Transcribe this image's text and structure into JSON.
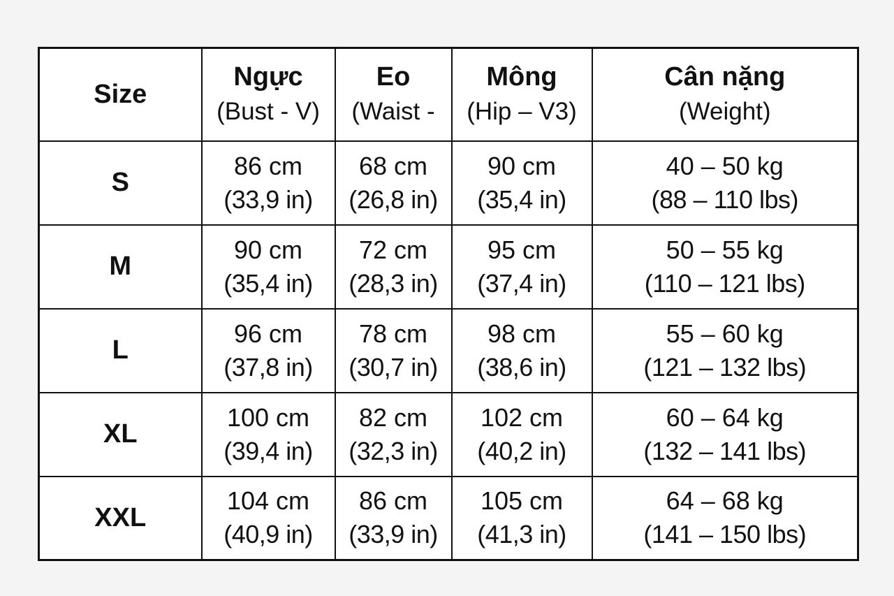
{
  "table": {
    "headers": {
      "size": "Size",
      "bust": {
        "title": "Ngực",
        "subtitle": "(Bust - V)"
      },
      "waist": {
        "title": "Eo",
        "subtitle": "(Waist -"
      },
      "hip": {
        "title": "Mông",
        "subtitle": "(Hip – V3)"
      },
      "weight": {
        "title": "Cân nặng",
        "subtitle": "(Weight)"
      }
    },
    "rows": [
      {
        "size": "S",
        "bust": {
          "cm": "86 cm",
          "in": "(33,9 in)"
        },
        "waist": {
          "cm": "68 cm",
          "in": "(26,8 in)"
        },
        "hip": {
          "cm": "90 cm",
          "in": "(35,4 in)"
        },
        "weight": {
          "kg": "40 – 50 kg",
          "lbs": "(88 – 110 lbs)"
        }
      },
      {
        "size": "M",
        "bust": {
          "cm": "90 cm",
          "in": "(35,4 in)"
        },
        "waist": {
          "cm": "72 cm",
          "in": "(28,3 in)"
        },
        "hip": {
          "cm": "95 cm",
          "in": "(37,4 in)"
        },
        "weight": {
          "kg": "50 – 55 kg",
          "lbs": "(110 – 121 lbs)"
        }
      },
      {
        "size": "L",
        "bust": {
          "cm": "96 cm",
          "in": "(37,8 in)"
        },
        "waist": {
          "cm": "78 cm",
          "in": "(30,7 in)"
        },
        "hip": {
          "cm": "98 cm",
          "in": "(38,6 in)"
        },
        "weight": {
          "kg": "55 – 60 kg",
          "lbs": "(121 – 132 lbs)"
        }
      },
      {
        "size": "XL",
        "bust": {
          "cm": "100 cm",
          "in": "(39,4 in)"
        },
        "waist": {
          "cm": "82 cm",
          "in": "(32,3 in)"
        },
        "hip": {
          "cm": "102 cm",
          "in": "(40,2 in)"
        },
        "weight": {
          "kg": "60 – 64 kg",
          "lbs": "(132 – 141 lbs)"
        }
      },
      {
        "size": "XXL",
        "bust": {
          "cm": "104 cm",
          "in": "(40,9 in)"
        },
        "waist": {
          "cm": "86 cm",
          "in": "(33,9 in)"
        },
        "hip": {
          "cm": "105 cm",
          "in": "(41,3 in)"
        },
        "weight": {
          "kg": "64 – 68 kg",
          "lbs": "(141 – 150 lbs)"
        }
      }
    ]
  }
}
